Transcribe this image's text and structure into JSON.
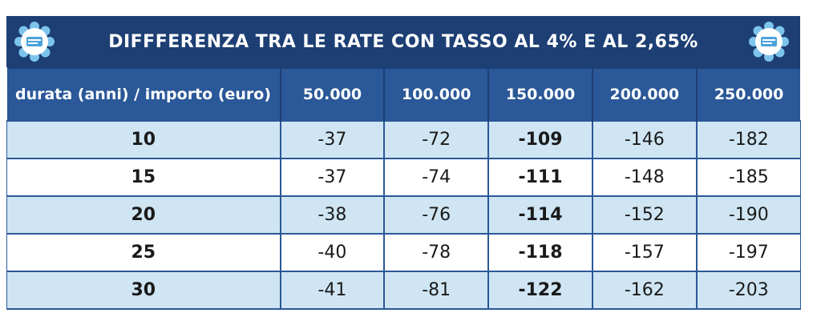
{
  "title": "DIFFFERENZA TRA LE RATE CON TASSO AL 4% E AL 2,65%",
  "logo_icon": "flower-badge-icon",
  "colors": {
    "header_dark": "#1d3f74",
    "header_mid": "#2a5898",
    "row_light": "#cfe5f3",
    "row_white": "#ffffff"
  },
  "table": {
    "headers": [
      "durata (anni) / importo (euro)",
      "50.000",
      "100.000",
      "150.000",
      "200.000",
      "250.000"
    ],
    "rows": [
      [
        "10",
        "-37",
        "-72",
        "-109",
        "-146",
        "-182"
      ],
      [
        "15",
        "-37",
        "-74",
        "-111",
        "-148",
        "-185"
      ],
      [
        "20",
        "-38",
        "-76",
        "-114",
        "-152",
        "-190"
      ],
      [
        "25",
        "-40",
        "-78",
        "-118",
        "-157",
        "-197"
      ],
      [
        "30",
        "-41",
        "-81",
        "-122",
        "-162",
        "-203"
      ]
    ]
  }
}
